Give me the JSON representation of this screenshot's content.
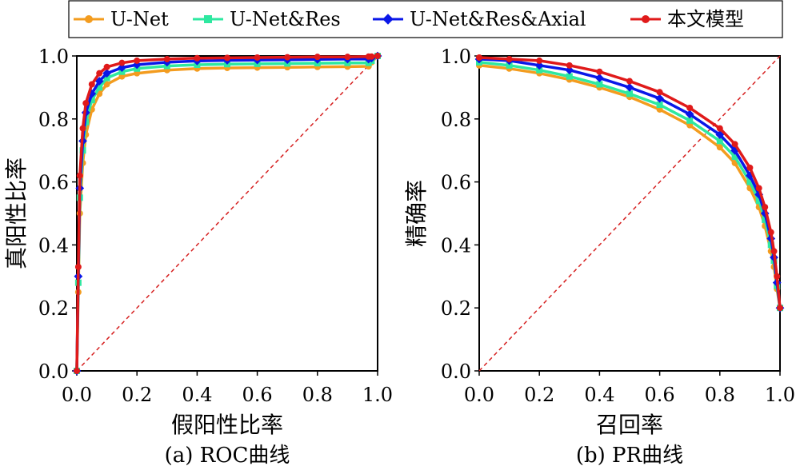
{
  "legend": [
    {
      "name": "U-Net",
      "color": "#f39c1f",
      "marker": "circle"
    },
    {
      "name": "U-Net&Res",
      "color": "#2ee8a0",
      "marker": "square"
    },
    {
      "name": "U-Net&Res&Axial",
      "color": "#0a17e8",
      "marker": "diamond"
    },
    {
      "name": "本文模型",
      "color": "#e01a1a",
      "marker": "circle"
    }
  ],
  "chart_data": [
    {
      "type": "line",
      "subplot": "roc",
      "caption": "(a) ROC曲线",
      "xlabel": "假阳性比率",
      "ylabel": "真阳性比率",
      "xlim": [
        0,
        1
      ],
      "ylim": [
        0,
        1
      ],
      "xticks": [
        "0.0",
        "0.2",
        "0.4",
        "0.6",
        "0.8",
        "1.0"
      ],
      "yticks": [
        "0.0",
        "0.2",
        "0.4",
        "0.6",
        "0.8",
        "1.0"
      ],
      "diagonal": {
        "from": [
          0,
          0
        ],
        "to": [
          1,
          1
        ],
        "color": "#d62020",
        "style": "dashed"
      },
      "x": [
        0.0,
        0.005,
        0.01,
        0.02,
        0.03,
        0.05,
        0.075,
        0.1,
        0.15,
        0.2,
        0.3,
        0.4,
        0.5,
        0.6,
        0.7,
        0.8,
        0.9,
        0.97,
        0.98,
        1.0
      ],
      "series": [
        {
          "name": "U-Net",
          "values": [
            0.0,
            0.25,
            0.5,
            0.66,
            0.75,
            0.83,
            0.88,
            0.91,
            0.935,
            0.945,
            0.955,
            0.96,
            0.962,
            0.963,
            0.964,
            0.965,
            0.966,
            0.967,
            0.98,
            1.0
          ]
        },
        {
          "name": "U-Net&Res",
          "values": [
            0.0,
            0.28,
            0.55,
            0.7,
            0.79,
            0.86,
            0.9,
            0.93,
            0.95,
            0.96,
            0.968,
            0.972,
            0.974,
            0.975,
            0.976,
            0.977,
            0.978,
            0.978,
            0.985,
            1.0
          ]
        },
        {
          "name": "U-Net&Res&Axial",
          "values": [
            0.0,
            0.3,
            0.58,
            0.73,
            0.82,
            0.88,
            0.92,
            0.945,
            0.963,
            0.972,
            0.98,
            0.984,
            0.986,
            0.987,
            0.988,
            0.989,
            0.99,
            0.99,
            0.993,
            1.0
          ]
        },
        {
          "name": "本文模型",
          "values": [
            0.0,
            0.33,
            0.62,
            0.77,
            0.85,
            0.91,
            0.945,
            0.965,
            0.978,
            0.985,
            0.99,
            0.993,
            0.994,
            0.995,
            0.996,
            0.997,
            0.997,
            0.998,
            0.998,
            1.0
          ]
        }
      ]
    },
    {
      "type": "line",
      "subplot": "pr",
      "caption": "(b) PR曲线",
      "xlabel": "召回率",
      "ylabel": "精确率",
      "xlim": [
        0,
        1
      ],
      "ylim": [
        0,
        1
      ],
      "xticks": [
        "0.0",
        "0.2",
        "0.4",
        "0.6",
        "0.8",
        "1.0"
      ],
      "yticks": [
        "0.0",
        "0.2",
        "0.4",
        "0.6",
        "0.8",
        "1.0"
      ],
      "diagonal": {
        "from": [
          0,
          0
        ],
        "to": [
          1,
          1
        ],
        "color": "#d62020",
        "style": "dashed"
      },
      "x": [
        0.0,
        0.1,
        0.2,
        0.3,
        0.4,
        0.5,
        0.6,
        0.7,
        0.8,
        0.85,
        0.9,
        0.93,
        0.95,
        0.97,
        0.98,
        0.99,
        1.0
      ],
      "series": [
        {
          "name": "U-Net",
          "values": [
            0.97,
            0.96,
            0.945,
            0.925,
            0.9,
            0.87,
            0.83,
            0.78,
            0.71,
            0.66,
            0.58,
            0.52,
            0.46,
            0.38,
            0.33,
            0.26,
            0.2
          ]
        },
        {
          "name": "U-Net&Res",
          "values": [
            0.98,
            0.97,
            0.955,
            0.935,
            0.91,
            0.88,
            0.845,
            0.795,
            0.73,
            0.68,
            0.6,
            0.54,
            0.48,
            0.4,
            0.35,
            0.27,
            0.2
          ]
        },
        {
          "name": "U-Net&Res&Axial",
          "values": [
            0.99,
            0.985,
            0.97,
            0.955,
            0.93,
            0.9,
            0.865,
            0.815,
            0.75,
            0.7,
            0.62,
            0.56,
            0.5,
            0.42,
            0.36,
            0.28,
            0.2
          ]
        },
        {
          "name": "本文模型",
          "values": [
            0.995,
            0.99,
            0.985,
            0.97,
            0.95,
            0.92,
            0.885,
            0.835,
            0.77,
            0.72,
            0.645,
            0.58,
            0.52,
            0.44,
            0.38,
            0.3,
            0.2
          ]
        }
      ]
    }
  ]
}
